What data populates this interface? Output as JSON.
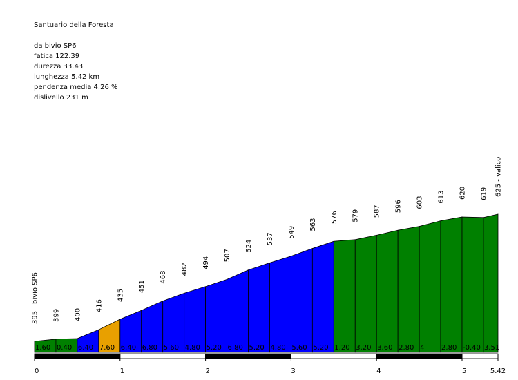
{
  "info": {
    "title": "Santuario della Foresta",
    "from": "da bivio SP6",
    "fatica": "fatica 122.39",
    "durezza": "durezza 33.43",
    "lunghezza": "lunghezza 5.42 km",
    "pendenza": "pendenza media 4.26 %",
    "dislivello": "dislivello 231 m"
  },
  "colors": {
    "easy": "#008000",
    "medium": "#0000ff",
    "hard": "#e8a000",
    "outline": "#000000"
  },
  "chart_data": {
    "type": "area",
    "x_unit": "km",
    "y_unit": "m",
    "xlim": [
      0,
      5.42
    ],
    "x_ticks": [
      "0",
      "1",
      "2",
      "3",
      "4",
      "5",
      "5.42"
    ],
    "segments": [
      {
        "x0": 0.0,
        "x1": 0.25,
        "gradient": "1.60"
      },
      {
        "x0": 0.25,
        "x1": 0.5,
        "gradient": "0.40"
      },
      {
        "x0": 0.5,
        "x1": 0.75,
        "gradient": "6.40"
      },
      {
        "x0": 0.75,
        "x1": 1.0,
        "gradient": "7.60"
      },
      {
        "x0": 1.0,
        "x1": 1.25,
        "gradient": "6.40"
      },
      {
        "x0": 1.25,
        "x1": 1.5,
        "gradient": "6.80"
      },
      {
        "x0": 1.5,
        "x1": 1.75,
        "gradient": "5.60"
      },
      {
        "x0": 1.75,
        "x1": 2.0,
        "gradient": "4.80"
      },
      {
        "x0": 2.0,
        "x1": 2.25,
        "gradient": "5.20"
      },
      {
        "x0": 2.25,
        "x1": 2.5,
        "gradient": "6.80"
      },
      {
        "x0": 2.5,
        "x1": 2.75,
        "gradient": "5.20"
      },
      {
        "x0": 2.75,
        "x1": 3.0,
        "gradient": "4.80"
      },
      {
        "x0": 3.0,
        "x1": 3.25,
        "gradient": "5.60"
      },
      {
        "x0": 3.25,
        "x1": 3.5,
        "gradient": "5.20"
      },
      {
        "x0": 3.5,
        "x1": 3.75,
        "gradient": "1.20"
      },
      {
        "x0": 3.75,
        "x1": 4.0,
        "gradient": "3.20"
      },
      {
        "x0": 4.0,
        "x1": 4.25,
        "gradient": "3.60"
      },
      {
        "x0": 4.25,
        "x1": 4.5,
        "gradient": "2.80"
      },
      {
        "x0": 4.5,
        "x1": 4.75,
        "gradient": "4"
      },
      {
        "x0": 4.75,
        "x1": 5.0,
        "gradient": "2.80"
      },
      {
        "x0": 5.0,
        "x1": 5.25,
        "gradient": "-0.40"
      },
      {
        "x0": 5.25,
        "x1": 5.42,
        "gradient": "3.51"
      }
    ],
    "points": [
      {
        "x": 0.0,
        "y": 395,
        "label": "395 - bivio SP6"
      },
      {
        "x": 0.25,
        "y": 399,
        "label": "399"
      },
      {
        "x": 0.5,
        "y": 400,
        "label": "400"
      },
      {
        "x": 0.75,
        "y": 416,
        "label": "416"
      },
      {
        "x": 1.0,
        "y": 435,
        "label": "435"
      },
      {
        "x": 1.25,
        "y": 451,
        "label": "451"
      },
      {
        "x": 1.5,
        "y": 468,
        "label": "468"
      },
      {
        "x": 1.75,
        "y": 482,
        "label": "482"
      },
      {
        "x": 2.0,
        "y": 494,
        "label": "494"
      },
      {
        "x": 2.25,
        "y": 507,
        "label": "507"
      },
      {
        "x": 2.5,
        "y": 524,
        "label": "524"
      },
      {
        "x": 2.75,
        "y": 537,
        "label": "537"
      },
      {
        "x": 3.0,
        "y": 549,
        "label": "549"
      },
      {
        "x": 3.25,
        "y": 563,
        "label": "563"
      },
      {
        "x": 3.5,
        "y": 576,
        "label": "576"
      },
      {
        "x": 3.75,
        "y": 579,
        "label": "579"
      },
      {
        "x": 4.0,
        "y": 587,
        "label": "587"
      },
      {
        "x": 4.25,
        "y": 596,
        "label": "596"
      },
      {
        "x": 4.5,
        "y": 603,
        "label": "603"
      },
      {
        "x": 4.75,
        "y": 613,
        "label": "613"
      },
      {
        "x": 5.0,
        "y": 620,
        "label": "620"
      },
      {
        "x": 5.25,
        "y": 619,
        "label": "619"
      },
      {
        "x": 5.42,
        "y": 625,
        "label": "625 - valico"
      }
    ]
  }
}
